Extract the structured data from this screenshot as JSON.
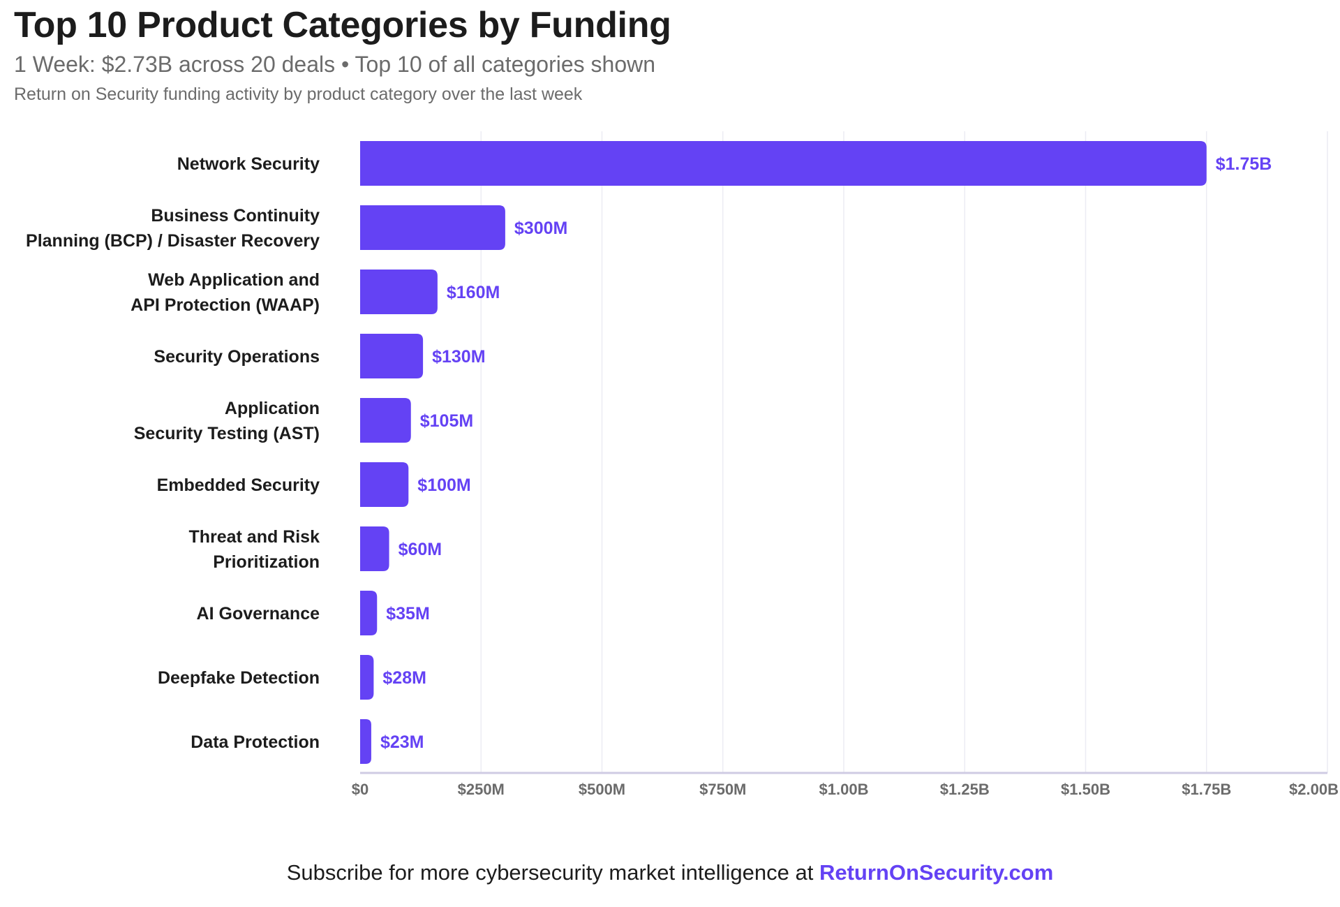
{
  "header": {
    "title": "Top 10 Product Categories by Funding",
    "subtitle": "1 Week: $2.73B across 20 deals • Top 10 of all categories shown",
    "description": "Return on Security funding activity by product category over the last week"
  },
  "footer": {
    "text": "Subscribe for more cybersecurity market intelligence at ",
    "link_text": "ReturnOnSecurity.com"
  },
  "colors": {
    "bar": "#6442f4",
    "value_label": "#6442f4",
    "category_label": "#1c1c1c",
    "tick_label": "#6b6b6b",
    "grid": "#ececf3",
    "axis": "#cfcbe3"
  },
  "chart_data": {
    "type": "bar",
    "orientation": "horizontal",
    "categories": [
      [
        "Network Security"
      ],
      [
        "Business Continuity",
        "Planning (BCP) / Disaster Recovery"
      ],
      [
        "Web Application and",
        "API Protection (WAAP)"
      ],
      [
        "Security Operations"
      ],
      [
        "Application",
        "Security Testing (AST)"
      ],
      [
        "Embedded Security"
      ],
      [
        "Threat and Risk",
        "Prioritization"
      ],
      [
        "AI Governance"
      ],
      [
        "Deepfake Detection"
      ],
      [
        "Data Protection"
      ]
    ],
    "values": [
      1750000000,
      300000000,
      160000000,
      130000000,
      105000000,
      100000000,
      60000000,
      35000000,
      28000000,
      23000000
    ],
    "value_labels": [
      "$1.75B",
      "$300M",
      "$160M",
      "$130M",
      "$105M",
      "$100M",
      "$60M",
      "$35M",
      "$28M",
      "$23M"
    ],
    "xlim": [
      0,
      2000000000
    ],
    "x_ticks": [
      0,
      250000000,
      500000000,
      750000000,
      1000000000,
      1250000000,
      1500000000,
      1750000000,
      2000000000
    ],
    "x_tick_labels": [
      "$0",
      "$250M",
      "$500M",
      "$750M",
      "$1.00B",
      "$1.25B",
      "$1.50B",
      "$1.75B",
      "$2.00B"
    ],
    "grid": "vertical"
  }
}
